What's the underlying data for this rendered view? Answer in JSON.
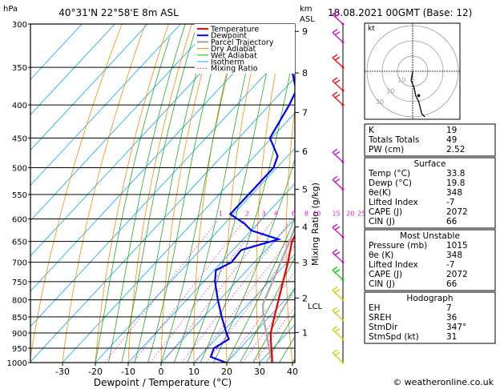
{
  "chart_data": {
    "type": "skew-t",
    "location": "40°31'N 22°58'E 8m ASL",
    "datetime": "18.08.2021 00GMT (Base: 12)",
    "y_axis_label": "hPa",
    "km_label": "km",
    "asl_label": "ASL",
    "x_axis_label": "Dewpoint / Temperature (°C)",
    "mixing_ratio_label": "Mixing Ratio (g/kg)",
    "copyright": "© weatheronline.co.uk",
    "pressure_levels": [
      300,
      350,
      400,
      450,
      500,
      550,
      600,
      650,
      700,
      750,
      800,
      850,
      900,
      950,
      1000
    ],
    "pressure_range": [
      300,
      1000
    ],
    "temperature_ticks": [
      -30,
      -20,
      -10,
      0,
      10,
      20,
      30,
      40
    ],
    "temperature_range": [
      -40,
      40
    ],
    "km_ticks": [
      {
        "label": "9",
        "p": 308
      },
      {
        "label": "8",
        "p": 357
      },
      {
        "label": "7",
        "p": 411
      },
      {
        "label": "6",
        "p": 472
      },
      {
        "label": "5",
        "p": 540
      },
      {
        "label": "4",
        "p": 617
      },
      {
        "label": "3",
        "p": 701
      },
      {
        "label": "2",
        "p": 795
      },
      {
        "label": "1",
        "p": 899
      }
    ],
    "lcl": {
      "label": "LCL",
      "p": 812
    },
    "mixing_ratio_values": [
      "1",
      "2",
      "3",
      "4",
      "6",
      "8",
      "10",
      "15",
      "20",
      "25"
    ],
    "legend": [
      {
        "name": "Temperature",
        "color": "#ff0000"
      },
      {
        "name": "Dewpoint",
        "color": "#0000ff"
      },
      {
        "name": "Parcel Trajectory",
        "color": "#a0a0a0"
      },
      {
        "name": "Dry Adiabat",
        "color": "#ff8000"
      },
      {
        "name": "Wet Adiabat",
        "color": "#00bb00"
      },
      {
        "name": "Isotherm",
        "color": "#00aaff"
      },
      {
        "name": "Mixing Ratio",
        "color": "#ff00ff"
      }
    ],
    "temperature_profile": [
      {
        "p": 1000,
        "t": 33.8
      },
      {
        "p": 980,
        "t": 32.2
      },
      {
        "p": 950,
        "t": 29.5
      },
      {
        "p": 925,
        "t": 27.2
      },
      {
        "p": 900,
        "t": 25.0
      },
      {
        "p": 850,
        "t": 21.5
      },
      {
        "p": 800,
        "t": 18.0
      },
      {
        "p": 750,
        "t": 14.2
      },
      {
        "p": 700,
        "t": 10.2
      },
      {
        "p": 650,
        "t": 5.5
      },
      {
        "p": 620,
        "t": 3.8
      },
      {
        "p": 600,
        "t": 2.2
      },
      {
        "p": 550,
        "t": -2.5
      },
      {
        "p": 500,
        "t": -7.5
      },
      {
        "p": 470,
        "t": -11.5
      },
      {
        "p": 450,
        "t": -12.5
      },
      {
        "p": 400,
        "t": -19.5
      },
      {
        "p": 350,
        "t": -27.5
      },
      {
        "p": 300,
        "t": -35.5
      }
    ],
    "dewpoint_profile": [
      {
        "p": 1000,
        "t": 19.8
      },
      {
        "p": 980,
        "t": 13.5
      },
      {
        "p": 950,
        "t": 12.0
      },
      {
        "p": 920,
        "t": 14.0
      },
      {
        "p": 900,
        "t": 11.5
      },
      {
        "p": 850,
        "t": 5.5
      },
      {
        "p": 800,
        "t": -0.5
      },
      {
        "p": 750,
        "t": -6.5
      },
      {
        "p": 720,
        "t": -9.5
      },
      {
        "p": 700,
        "t": -7.0
      },
      {
        "p": 670,
        "t": -7.5
      },
      {
        "p": 645,
        "t": 0.8
      },
      {
        "p": 625,
        "t": -10.0
      },
      {
        "p": 610,
        "t": -14.0
      },
      {
        "p": 590,
        "t": -21.0
      },
      {
        "p": 550,
        "t": -21.0
      },
      {
        "p": 500,
        "t": -21.0
      },
      {
        "p": 480,
        "t": -23.0
      },
      {
        "p": 450,
        "t": -30.5
      },
      {
        "p": 400,
        "t": -34.0
      },
      {
        "p": 380,
        "t": -36.0
      },
      {
        "p": 350,
        "t": -44.0
      },
      {
        "p": 300,
        "t": -56.0
      }
    ],
    "parcel_profile": [
      {
        "p": 1000,
        "t": 33.8
      },
      {
        "p": 950,
        "t": 28.8
      },
      {
        "p": 900,
        "t": 23.6
      },
      {
        "p": 850,
        "t": 18.2
      },
      {
        "p": 812,
        "t": 14.4
      },
      {
        "p": 750,
        "t": 11.0
      },
      {
        "p": 700,
        "t": 8.0
      },
      {
        "p": 650,
        "t": 4.8
      },
      {
        "p": 600,
        "t": 1.0
      },
      {
        "p": 550,
        "t": -3.5
      },
      {
        "p": 500,
        "t": -9.0
      },
      {
        "p": 450,
        "t": -15.5
      },
      {
        "p": 400,
        "t": -23.0
      },
      {
        "p": 350,
        "t": -32.0
      },
      {
        "p": 300,
        "t": -43.0
      }
    ],
    "wind_barbs": [
      {
        "p": 300,
        "color": "#cc00cc"
      },
      {
        "p": 320,
        "color": "#cc00cc"
      },
      {
        "p": 350,
        "color": "#ff0000"
      },
      {
        "p": 380,
        "color": "#ff0000"
      },
      {
        "p": 400,
        "color": "#ff0000"
      },
      {
        "p": 490,
        "color": "#cc00cc"
      },
      {
        "p": 540,
        "color": "#cc00cc"
      },
      {
        "p": 640,
        "color": "#cc00cc"
      },
      {
        "p": 700,
        "color": "#cc00cc"
      },
      {
        "p": 745,
        "color": "#00cc00"
      },
      {
        "p": 800,
        "color": "#cccc00"
      },
      {
        "p": 860,
        "color": "#cccc00"
      },
      {
        "p": 920,
        "color": "#cccc00"
      },
      {
        "p": 1000,
        "color": "#cccc00"
      }
    ],
    "hodograph": {
      "label": "kt",
      "ring_labels": [
        "10",
        "20",
        "30"
      ],
      "trace": [
        {
          "u": 0,
          "v": 0
        },
        {
          "u": -1,
          "v": -6
        },
        {
          "u": 1,
          "v": -11
        },
        {
          "u": 2,
          "v": -16
        },
        {
          "u": 4,
          "v": -20
        },
        {
          "u": 5,
          "v": -24
        },
        {
          "u": 6,
          "v": -28
        },
        {
          "u": 8,
          "v": -30
        }
      ],
      "storm_motion": {
        "u": 4,
        "v": -16
      }
    }
  },
  "indices": {
    "rows": [
      {
        "name": "K",
        "value": "19"
      },
      {
        "name": "Totals Totals",
        "value": "49"
      },
      {
        "name": "PW (cm)",
        "value": "2.52"
      }
    ]
  },
  "surface": {
    "title": "Surface",
    "rows": [
      {
        "name": "Temp (°C)",
        "value": "33.8"
      },
      {
        "name": "Dewp (°C)",
        "value": "19.8"
      },
      {
        "name": "θe(K)",
        "value": "348"
      },
      {
        "name": "Lifted Index",
        "value": "-7"
      },
      {
        "name": "CAPE (J)",
        "value": "2072"
      },
      {
        "name": "CIN (J)",
        "value": "66"
      }
    ]
  },
  "most_unstable": {
    "title": "Most Unstable",
    "rows": [
      {
        "name": "Pressure (mb)",
        "value": "1015"
      },
      {
        "name": "θe (K)",
        "value": "348"
      },
      {
        "name": "Lifted Index",
        "value": "-7"
      },
      {
        "name": "CAPE (J)",
        "value": "2072"
      },
      {
        "name": "CIN (J)",
        "value": "66"
      }
    ]
  },
  "hodograph_table": {
    "title": "Hodograph",
    "rows": [
      {
        "name": "EH",
        "value": "7"
      },
      {
        "name": "SREH",
        "value": "36"
      },
      {
        "name": "StmDir",
        "value": "347°"
      },
      {
        "name": "StmSpd (kt)",
        "value": "31"
      }
    ]
  }
}
